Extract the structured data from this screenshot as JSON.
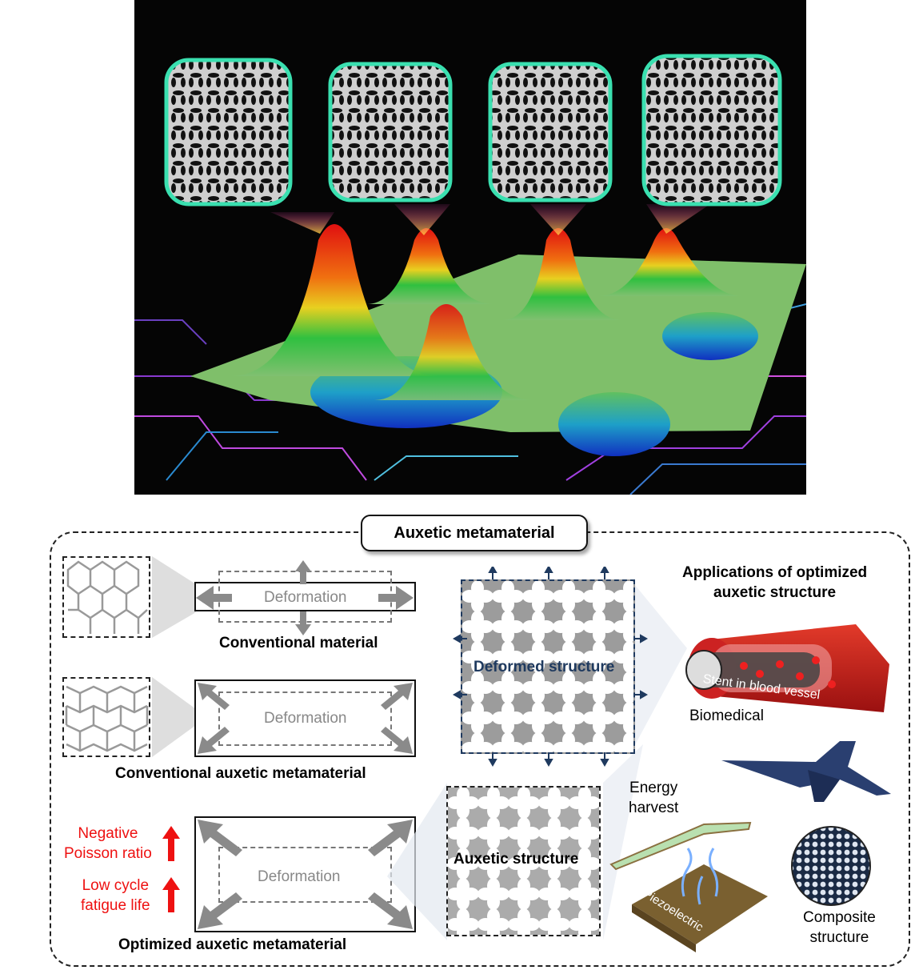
{
  "panel": {
    "title": "Auxetic metamaterial",
    "rows": [
      {
        "caption": "Conventional material",
        "deformation_label": "Deformation"
      },
      {
        "caption": "Conventional auxetic metamaterial",
        "deformation_label": "Deformation"
      },
      {
        "caption": "Optimized auxetic metamaterial",
        "deformation_label": "Deformation"
      }
    ],
    "benefits": [
      {
        "line1": "Negative",
        "line2": "Poisson ratio"
      },
      {
        "line1": "Low cycle",
        "line2": "fatigue life"
      }
    ],
    "deformed_structure_label": "Deformed structure",
    "auxetic_structure_label": "Auxetic structure",
    "applications": {
      "title_line1": "Applications of optimized",
      "title_line2": "auxetic structure",
      "stent_label": "Stent in blood vessel",
      "biomedical_label": "Biomedical",
      "energy_line1": "Energy",
      "energy_line2": "harvest",
      "piezo_label": "Piezoelectric",
      "composite_line1": "Composite",
      "composite_line2": "structure"
    }
  },
  "colors": {
    "benefit_red": "#ee1111",
    "deformed_label": "#1f3a5f",
    "arrow_gray": "#8a8a8a"
  }
}
